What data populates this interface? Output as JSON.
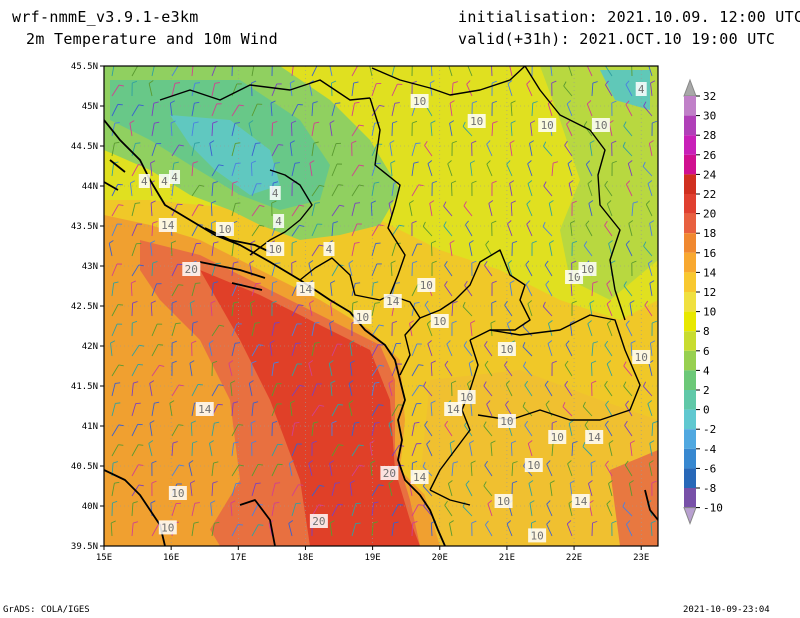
{
  "header": {
    "model": "wrf-nmmE_v3.9.1-e3km",
    "product": "2m Temperature and 10m Wind",
    "initialisation": "initialisation: 2021.10.09. 12:00 UTC",
    "valid": "valid(+31h): 2021.OCT.10 19:00 UTC"
  },
  "footer": {
    "credit": "GrADS: COLA/IGES",
    "timestamp": "2021-10-09-23:04"
  },
  "map": {
    "lon_range": [
      15,
      23.25
    ],
    "lat_range": [
      39.5,
      45.5
    ],
    "lon_ticks": [
      "15E",
      "16E",
      "17E",
      "18E",
      "19E",
      "20E",
      "21E",
      "22E",
      "23E"
    ],
    "lat_ticks": [
      "39.5N",
      "40N",
      "40.5N",
      "41N",
      "41.5N",
      "42N",
      "42.5N",
      "43N",
      "43.5N",
      "44N",
      "44.5N",
      "45N",
      "45.5N"
    ]
  },
  "colorbar": {
    "labels": [
      "32",
      "30",
      "28",
      "26",
      "24",
      "22",
      "20",
      "18",
      "16",
      "14",
      "12",
      "10",
      "8",
      "6",
      "4",
      "2",
      "0",
      "-2",
      "-4",
      "-6",
      "-8",
      "-10"
    ],
    "colors": [
      "#c080c8",
      "#b040b8",
      "#c820b8",
      "#d01090",
      "#d03020",
      "#e04030",
      "#e86040",
      "#f08830",
      "#f8a830",
      "#f8c830",
      "#f0e040",
      "#e8e800",
      "#c8dc30",
      "#98d050",
      "#6cc878",
      "#60c8a8",
      "#60c8d0",
      "#50a8e0",
      "#3888d0",
      "#2868b8",
      "#7850a8"
    ]
  },
  "contour_labels": [
    {
      "text": "10",
      "lon": 19.7,
      "lat": 45.05
    },
    {
      "text": "10",
      "lon": 20.55,
      "lat": 44.8
    },
    {
      "text": "10",
      "lon": 21.6,
      "lat": 44.75
    },
    {
      "text": "10",
      "lon": 22.4,
      "lat": 44.75
    },
    {
      "text": "4",
      "lon": 23.0,
      "lat": 45.2
    },
    {
      "text": "4",
      "lon": 15.6,
      "lat": 44.05
    },
    {
      "text": "4",
      "lon": 15.9,
      "lat": 44.05
    },
    {
      "text": "4",
      "lon": 16.05,
      "lat": 44.1
    },
    {
      "text": "4",
      "lon": 17.55,
      "lat": 43.9
    },
    {
      "text": "4",
      "lon": 17.6,
      "lat": 43.55
    },
    {
      "text": "14",
      "lon": 15.95,
      "lat": 43.5
    },
    {
      "text": "10",
      "lon": 16.8,
      "lat": 43.45
    },
    {
      "text": "10",
      "lon": 17.55,
      "lat": 43.2
    },
    {
      "text": "4",
      "lon": 18.35,
      "lat": 43.2
    },
    {
      "text": "20",
      "lon": 16.3,
      "lat": 42.95
    },
    {
      "text": "14",
      "lon": 18.0,
      "lat": 42.7
    },
    {
      "text": "14",
      "lon": 19.3,
      "lat": 42.55
    },
    {
      "text": "10",
      "lon": 19.8,
      "lat": 42.75
    },
    {
      "text": "10",
      "lon": 18.85,
      "lat": 42.35
    },
    {
      "text": "10",
      "lon": 20.0,
      "lat": 42.3
    },
    {
      "text": "10",
      "lon": 22.0,
      "lat": 42.85
    },
    {
      "text": "10",
      "lon": 22.2,
      "lat": 42.95
    },
    {
      "text": "10",
      "lon": 21.0,
      "lat": 41.95
    },
    {
      "text": "10",
      "lon": 23.0,
      "lat": 41.85
    },
    {
      "text": "10",
      "lon": 20.4,
      "lat": 41.35
    },
    {
      "text": "14",
      "lon": 20.2,
      "lat": 41.2
    },
    {
      "text": "14",
      "lon": 16.5,
      "lat": 41.2
    },
    {
      "text": "10",
      "lon": 21.0,
      "lat": 41.05
    },
    {
      "text": "10",
      "lon": 21.75,
      "lat": 40.85
    },
    {
      "text": "14",
      "lon": 22.3,
      "lat": 40.85
    },
    {
      "text": "10",
      "lon": 21.4,
      "lat": 40.5
    },
    {
      "text": "20",
      "lon": 19.25,
      "lat": 40.4
    },
    {
      "text": "14",
      "lon": 19.7,
      "lat": 40.35
    },
    {
      "text": "10",
      "lon": 16.1,
      "lat": 40.15
    },
    {
      "text": "14",
      "lon": 22.1,
      "lat": 40.05
    },
    {
      "text": "10",
      "lon": 20.95,
      "lat": 40.05
    },
    {
      "text": "20",
      "lon": 18.2,
      "lat": 39.8
    },
    {
      "text": "10",
      "lon": 15.95,
      "lat": 39.72
    },
    {
      "text": "10",
      "lon": 21.45,
      "lat": 39.62
    }
  ]
}
